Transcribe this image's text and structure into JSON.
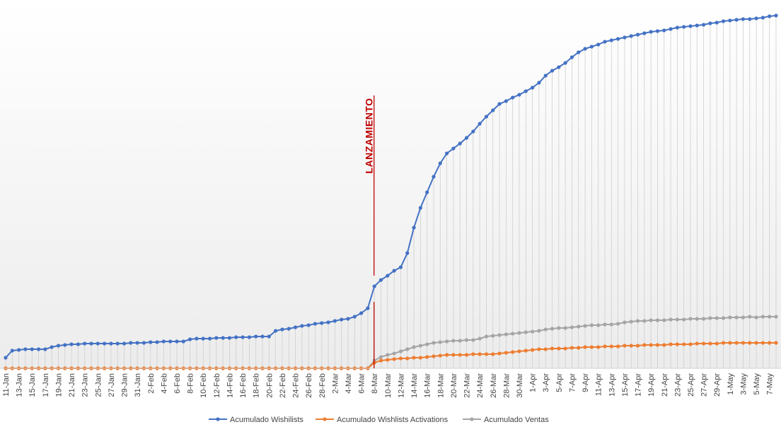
{
  "chart_data": {
    "type": "line",
    "annotation": {
      "text": "LANZAMIENTO",
      "category": "8-Mar"
    },
    "categories": [
      "11-Jan",
      null,
      "13-Jan",
      null,
      "15-Jan",
      null,
      "17-Jan",
      null,
      "19-Jan",
      null,
      "21-Jan",
      null,
      "23-Jan",
      null,
      "25-Jan",
      null,
      "27-Jan",
      null,
      "29-Jan",
      null,
      "31-Jan",
      null,
      "2-Feb",
      null,
      "4-Feb",
      null,
      "6-Feb",
      null,
      "8-Feb",
      null,
      "10-Feb",
      null,
      "12-Feb",
      null,
      "14-Feb",
      null,
      "16-Feb",
      null,
      "18-Feb",
      null,
      "20-Feb",
      null,
      "22-Feb",
      null,
      "24-Feb",
      null,
      "26-Feb",
      null,
      "28-Feb",
      null,
      "2-Mar",
      null,
      "4-Mar",
      null,
      "6-Mar",
      null,
      "8-Mar",
      null,
      "10-Mar",
      null,
      "12-Mar",
      null,
      "14-Mar",
      null,
      "16-Mar",
      null,
      "18-Mar",
      null,
      "20-Mar",
      null,
      "22-Mar",
      null,
      "24-Mar",
      null,
      "26-Mar",
      null,
      "28-Mar",
      null,
      "30-Mar",
      null,
      "1-Apr",
      null,
      "3-Apr",
      null,
      "5-Apr",
      null,
      "7-Apr",
      null,
      "9-Apr",
      null,
      "11-Apr",
      null,
      "13-Apr",
      null,
      "15-Apr",
      null,
      "17-Apr",
      null,
      "19-Apr",
      null,
      "21-Apr",
      null,
      "23-Apr",
      null,
      "25-Apr",
      null,
      "27-Apr",
      null,
      "29-Apr",
      null,
      "1-May",
      null,
      "3-May",
      null,
      "5-May",
      null,
      "7-May",
      null
    ],
    "ylim": [
      0,
      500
    ],
    "drop_lines": true,
    "series": [
      {
        "name": "Acumulado Wishilists",
        "color": "#4472c4",
        "values": [
          15,
          25,
          26,
          27,
          27,
          27,
          27,
          30,
          32,
          33,
          34,
          34,
          35,
          35,
          35,
          35,
          35,
          35,
          35,
          36,
          36,
          36,
          37,
          37,
          38,
          38,
          38,
          38,
          41,
          42,
          42,
          42,
          43,
          43,
          43,
          44,
          44,
          44,
          45,
          45,
          45,
          53,
          55,
          56,
          58,
          60,
          61,
          63,
          64,
          65,
          67,
          69,
          70,
          73,
          78,
          85,
          116,
          125,
          131,
          138,
          143,
          163,
          199,
          227,
          249,
          271,
          290,
          304,
          311,
          318,
          326,
          335,
          346,
          356,
          365,
          374,
          378,
          383,
          387,
          392,
          397,
          404,
          414,
          421,
          426,
          432,
          440,
          447,
          452,
          455,
          458,
          462,
          464,
          466,
          468,
          470,
          472,
          474,
          476,
          477,
          478,
          480,
          482,
          483,
          484,
          485,
          486,
          488,
          489,
          491,
          492,
          493,
          494,
          494,
          495,
          496,
          498,
          499
        ]
      },
      {
        "name": "Acumulado Wishlists Activations",
        "color": "#ed7d31",
        "values": [
          0,
          0,
          0,
          0,
          0,
          0,
          0,
          0,
          0,
          0,
          0,
          0,
          0,
          0,
          0,
          0,
          0,
          0,
          0,
          0,
          0,
          0,
          0,
          0,
          0,
          0,
          0,
          0,
          0,
          0,
          0,
          0,
          0,
          0,
          0,
          0,
          0,
          0,
          0,
          0,
          0,
          0,
          0,
          0,
          0,
          0,
          0,
          0,
          0,
          0,
          0,
          0,
          0,
          0,
          0,
          0,
          8,
          11,
          12,
          13,
          14,
          14,
          15,
          15,
          16,
          17,
          18,
          19,
          19,
          19,
          19,
          20,
          20,
          20,
          20,
          21,
          22,
          23,
          24,
          25,
          26,
          27,
          27,
          28,
          28,
          28,
          29,
          29,
          30,
          30,
          30,
          31,
          31,
          31,
          32,
          32,
          32,
          33,
          33,
          33,
          33,
          34,
          34,
          34,
          34,
          35,
          35,
          35,
          35,
          36,
          36,
          36,
          36,
          36,
          36,
          36,
          36,
          36
        ]
      },
      {
        "name": "Acumulado Ventas",
        "color": "#a5a5a5",
        "values": [
          0,
          0,
          0,
          0,
          0,
          0,
          0,
          0,
          0,
          0,
          0,
          0,
          0,
          0,
          0,
          0,
          0,
          0,
          0,
          0,
          0,
          0,
          0,
          0,
          0,
          0,
          0,
          0,
          0,
          0,
          0,
          0,
          0,
          0,
          0,
          0,
          0,
          0,
          0,
          0,
          0,
          0,
          0,
          0,
          0,
          0,
          0,
          0,
          0,
          0,
          0,
          0,
          0,
          0,
          0,
          0,
          11,
          16,
          19,
          21,
          24,
          27,
          30,
          32,
          34,
          36,
          37,
          38,
          39,
          39,
          40,
          40,
          42,
          45,
          46,
          47,
          48,
          49,
          50,
          51,
          52,
          53,
          55,
          56,
          57,
          57,
          58,
          59,
          60,
          61,
          61,
          62,
          62,
          63,
          65,
          66,
          67,
          67,
          68,
          68,
          68,
          69,
          69,
          69,
          70,
          70,
          70,
          71,
          71,
          71,
          72,
          72,
          72,
          73,
          72,
          73,
          73,
          73
        ]
      }
    ]
  }
}
